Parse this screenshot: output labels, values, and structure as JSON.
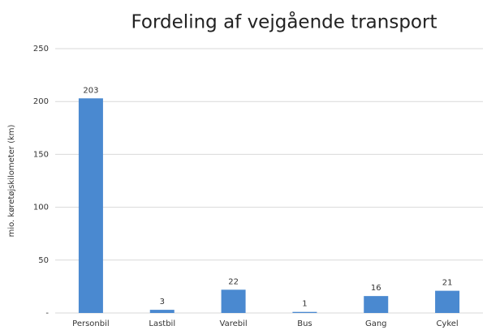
{
  "chart_data": {
    "type": "bar",
    "title": "Fordeling af vejgående transport",
    "y_label": "mio. køretøjskilometer (km)",
    "categories": [
      "Personbil",
      "Lastbil",
      "Varebil",
      "Bus",
      "Gang",
      "Cykel"
    ],
    "values": [
      203,
      3,
      22,
      1,
      16,
      21
    ],
    "color": "#4a89d0",
    "ylim": [
      0,
      250
    ],
    "yticks": [
      {
        "value": 0,
        "label": "-"
      },
      50,
      100,
      150,
      200,
      250
    ],
    "grid": true
  }
}
